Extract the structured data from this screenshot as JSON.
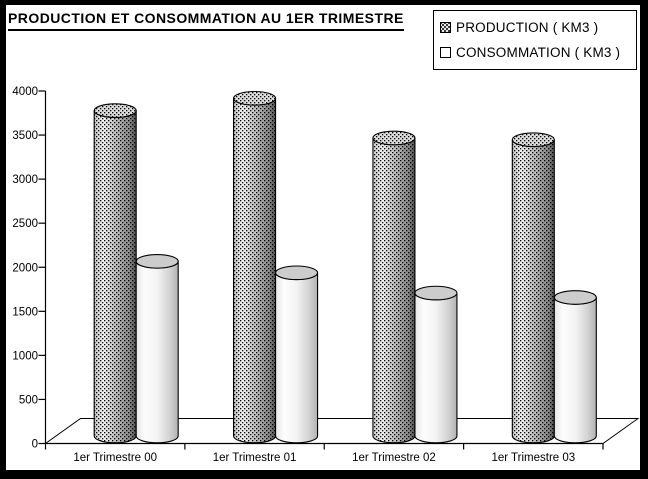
{
  "title": "PRODUCTION ET CONSOMMATION AU 1ER TRIMESTRE",
  "legend": {
    "items": [
      {
        "label": "PRODUCTION ( KM3 )",
        "marker": "dotted-square"
      },
      {
        "label": "CONSOMMATION ( KM3 )",
        "marker": "white-square"
      }
    ]
  },
  "colors": {
    "frame": "#000000",
    "background": "#ffffff",
    "stroke": "#000000",
    "production_top_fill": "#dddddd",
    "consommation_top_fill": "#cccccc"
  },
  "chart_data": {
    "type": "bar",
    "subtype": "3d-cylinder",
    "title": "PRODUCTION ET CONSOMMATION AU 1ER TRIMESTRE",
    "xlabel": "",
    "ylabel": "",
    "categories": [
      "1er Trimestre 00",
      "1er Trimestre 01",
      "1er Trimestre 02",
      "1er Trimestre 03"
    ],
    "series": [
      {
        "name": "PRODUCTION ( KM3 )",
        "fill": "gray-black-dot-pattern",
        "values": [
          3700,
          3840,
          3390,
          3370
        ]
      },
      {
        "name": "CONSOMMATION ( KM3 )",
        "fill": "white-shaded",
        "values": [
          1990,
          1860,
          1630,
          1580
        ]
      }
    ],
    "ylim": [
      0,
      4000
    ],
    "yticks": [
      0,
      500,
      1000,
      1500,
      2000,
      2500,
      3000,
      3500,
      4000
    ],
    "grid": false,
    "legend_position": "top-right"
  }
}
